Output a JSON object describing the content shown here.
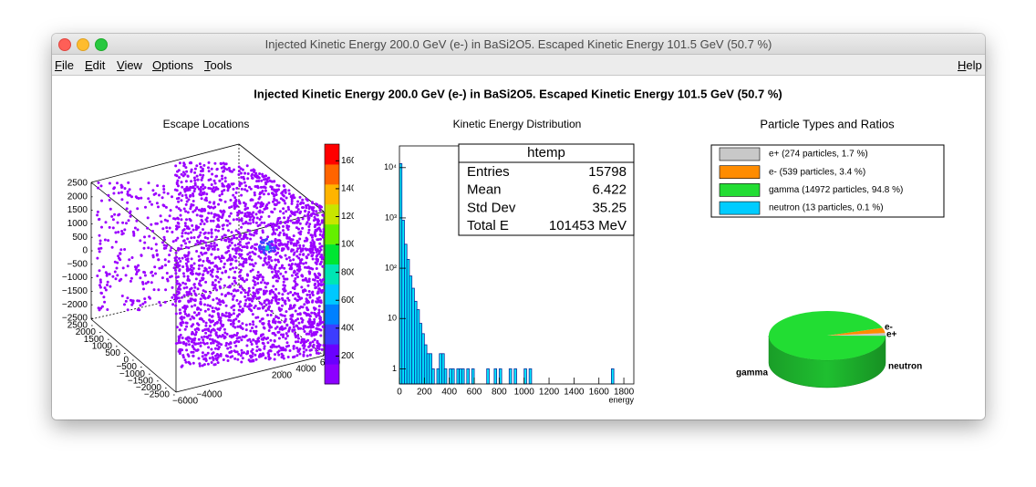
{
  "window": {
    "title": "Injected Kinetic Energy 200.0 GeV (e-) in BaSi2O5. Escaped Kinetic Energy 101.5 GeV (50.7 %)"
  },
  "menu": [
    "File",
    "Edit",
    "View",
    "Options",
    "Tools"
  ],
  "help_menu": "Help",
  "canvas_title": "Injected Kinetic Energy 200.0 GeV (e-) in BaSi2O5. Escaped Kinetic Energy 101.5 GeV (50.7 %)",
  "chart_data": [
    {
      "type": "scatter3d",
      "title": "Escape Locations",
      "color": "#9b00ff",
      "zlim": [
        -2500,
        2500
      ],
      "zticks": [
        2500,
        2000,
        1500,
        1000,
        500,
        0,
        {
          "value": -500,
          "label": "−500"
        },
        {
          "value": -1000,
          "label": "−1000"
        },
        {
          "value": -1500,
          "label": "−1500"
        },
        {
          "value": -2000,
          "label": "−2000"
        },
        {
          "value": -2500,
          "label": "−2500"
        }
      ],
      "ylim": [
        -2500,
        2500
      ],
      "yticks": [
        2500,
        2000,
        1500,
        1000,
        500,
        0,
        {
          "value": -500,
          "label": "−500"
        },
        {
          "value": -1000,
          "label": "−1000"
        },
        {
          "value": -1500,
          "label": "−1500"
        },
        {
          "value": -2000,
          "label": "−2000"
        },
        {
          "value": -2500,
          "label": "−2500"
        }
      ],
      "xlim": [
        -6000,
        6000
      ],
      "xticks": [
        {
          "value": -6000,
          "label": "−6000"
        },
        {
          "value": -4000,
          "label": "−4000"
        },
        2000,
        4000,
        6000
      ],
      "colorbar": {
        "zlim": [
          0,
          1720
        ],
        "ticks": [
          200,
          400,
          600,
          800,
          1000,
          1200,
          1400,
          1600
        ]
      }
    },
    {
      "type": "histogram",
      "title": "Kinetic Energy Distribution",
      "xlabel": "energy",
      "color": "#00e8ff",
      "log_y": true,
      "bins": [
        0,
        20,
        40,
        60,
        80,
        100,
        120,
        140,
        160,
        180,
        200,
        220,
        240,
        260,
        280,
        300,
        320,
        340,
        360,
        380,
        400,
        420,
        440,
        460,
        480,
        500,
        520,
        540,
        560,
        580,
        600,
        620,
        640,
        660,
        680,
        700,
        720,
        740,
        760,
        780,
        800,
        820,
        840,
        860,
        880,
        900,
        920,
        940,
        960,
        980,
        1000,
        1020,
        1040,
        1060,
        1080,
        1100,
        1120,
        1140,
        1160,
        1180,
        1200,
        1220,
        1240,
        1260,
        1280,
        1300,
        1320,
        1340,
        1360,
        1380,
        1400,
        1420,
        1440,
        1460,
        1480,
        1500,
        1520,
        1540,
        1560,
        1580,
        1600,
        1620,
        1640,
        1660,
        1680,
        1700,
        1720,
        1740,
        1760,
        1780,
        1800,
        1820,
        1840
      ],
      "values": [
        12000,
        900,
        300,
        150,
        70,
        40,
        22,
        15,
        8,
        5,
        3,
        2,
        2,
        1,
        0,
        1,
        2,
        2,
        1,
        0,
        1,
        1,
        0,
        1,
        1,
        1,
        0,
        1,
        0,
        1,
        0,
        0,
        0,
        0,
        0,
        1,
        0,
        0,
        1,
        0,
        1,
        0,
        0,
        0,
        1,
        0,
        1,
        0,
        0,
        0,
        1,
        0,
        1,
        0,
        0,
        0,
        0,
        0,
        0,
        0,
        0,
        0,
        0,
        0,
        0,
        0,
        0,
        0,
        0,
        0,
        0,
        0,
        0,
        0,
        0,
        0,
        0,
        0,
        0,
        0,
        0,
        0,
        0,
        0,
        0,
        1,
        0,
        0,
        0,
        0,
        0,
        0
      ],
      "xlim": [
        0,
        1880
      ],
      "xticks": [
        0,
        200,
        400,
        600,
        800,
        1000,
        1200,
        1400,
        1600,
        1800
      ],
      "ylim": [
        0.5,
        27000
      ],
      "yticks": [
        1,
        10,
        {
          "value": 100,
          "label": "10²"
        },
        {
          "value": 1000,
          "label": "10³"
        },
        {
          "value": 10000,
          "label": "10⁴"
        }
      ],
      "stats": {
        "title": "htemp",
        "rows": [
          [
            "Entries",
            "15798"
          ],
          [
            "Mean",
            "6.422"
          ],
          [
            "Std Dev",
            "35.25"
          ],
          [
            "Total E",
            "101453 MeV"
          ]
        ]
      }
    },
    {
      "type": "pie",
      "title": "Particle Types and Ratios",
      "labels": [
        "e+",
        "e-",
        "gamma",
        "neutron"
      ],
      "values": [
        1.7,
        3.4,
        94.8,
        0.1
      ],
      "colors": [
        "#c8c8c8",
        "#ff8c00",
        "#22dd33",
        "#00ccff"
      ],
      "legend": [
        "e+ (274 particles, 1.7 %)",
        "e- (539 particles, 3.4 %)",
        "gamma (14972 particles, 94.8 %)",
        "neutron (13 particles, 0.1 %)"
      ]
    }
  ]
}
